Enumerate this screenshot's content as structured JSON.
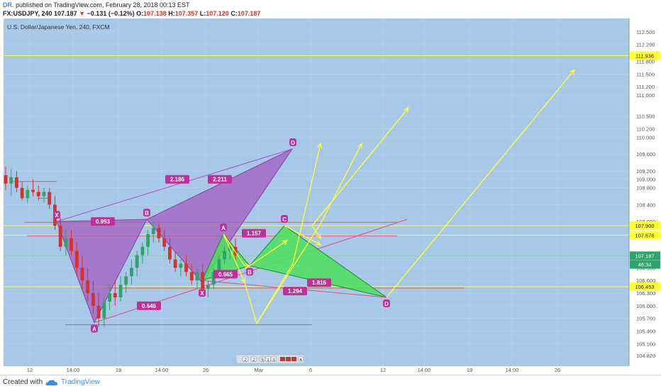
{
  "header": {
    "author": "DR.",
    "published": "published on TradingView.com, February 28, 2018 00:13 EST",
    "symbol": "FX:USDJPY, 240",
    "last": "107.187",
    "change": "−0.131 (−0.12%)",
    "open_label": "O:",
    "open": "107.138",
    "high_label": "H:",
    "high": "107.357",
    "low_label": "L:",
    "low": "107.120",
    "close_label": "C:",
    "close": "107.187"
  },
  "footer": {
    "created": "Created with",
    "brand": "TradingView"
  },
  "colors": {
    "background": "#a8c8e8",
    "bull": "#2ea36b",
    "bear": "#d8312b",
    "bat_fill": "#a35ec0",
    "green_fill": "#4ce05a",
    "projection": "#ffff33",
    "level": "#e8506e",
    "label_bg": "#c0309a"
  },
  "chart_data": {
    "type": "candlestick",
    "title": "U.S. Dollar/Japanese Yen, 240, FXCM",
    "ylim": [
      104.6,
      112.65
    ],
    "y_ticks": [
      "112.500",
      "112.200",
      "111.800",
      "111.500",
      "111.200",
      "111.000",
      "110.500",
      "110.200",
      "110.000",
      "109.600",
      "109.200",
      "109.000",
      "108.800",
      "108.400",
      "108.000",
      "107.900",
      "107.676",
      "107.187",
      "106.900",
      "106.600",
      "106.453",
      "106.300",
      "106.000",
      "105.700",
      "105.400",
      "105.100",
      "104.820"
    ],
    "x_ticks": [
      "12",
      "14:00",
      "19",
      "14:00",
      "26",
      "Mar",
      "6",
      "12",
      "14:00",
      "19",
      "14:00",
      "26"
    ],
    "price_badges": [
      {
        "label": "111.936",
        "value": 111.936,
        "style": "yellow"
      },
      {
        "label": "107.900",
        "value": 107.9,
        "style": "yellow"
      },
      {
        "label": "107.676",
        "value": 107.676,
        "style": "yellow"
      },
      {
        "label": "107.187",
        "value": 107.187,
        "style": "green"
      },
      {
        "label": "46:34",
        "value": 106.98,
        "style": "green"
      },
      {
        "label": "106.453",
        "value": 106.453,
        "style": "yellow"
      }
    ],
    "candles_ohlc": [
      [
        109.1,
        109.3,
        108.75,
        108.9
      ],
      [
        108.9,
        109.25,
        108.6,
        109.05
      ],
      [
        109.05,
        109.2,
        108.7,
        108.8
      ],
      [
        108.8,
        108.95,
        108.5,
        108.55
      ],
      [
        108.55,
        108.85,
        108.45,
        108.75
      ],
      [
        108.75,
        109.0,
        108.6,
        108.7
      ],
      [
        108.7,
        108.85,
        108.5,
        108.6
      ],
      [
        108.6,
        108.8,
        108.45,
        108.7
      ],
      [
        108.7,
        108.8,
        108.3,
        108.4
      ],
      [
        108.4,
        108.6,
        107.8,
        107.9
      ],
      [
        107.9,
        108.1,
        107.3,
        107.4
      ],
      [
        107.4,
        107.8,
        107.2,
        107.6
      ],
      [
        107.6,
        107.8,
        107.2,
        107.3
      ],
      [
        107.3,
        107.5,
        106.7,
        106.9
      ],
      [
        106.9,
        107.2,
        106.4,
        106.6
      ],
      [
        106.6,
        106.9,
        106.1,
        106.3
      ],
      [
        106.3,
        106.6,
        105.8,
        106.0
      ],
      [
        106.0,
        106.3,
        105.5,
        105.7
      ],
      [
        105.7,
        106.2,
        105.5,
        106.1
      ],
      [
        106.1,
        106.5,
        105.9,
        106.3
      ],
      [
        106.3,
        106.6,
        106.0,
        106.2
      ],
      [
        106.2,
        106.7,
        106.1,
        106.5
      ],
      [
        106.5,
        106.8,
        106.3,
        106.7
      ],
      [
        106.7,
        107.1,
        106.5,
        106.9
      ],
      [
        106.9,
        107.3,
        106.7,
        107.2
      ],
      [
        107.2,
        107.5,
        107.0,
        107.4
      ],
      [
        107.4,
        107.8,
        107.2,
        107.7
      ],
      [
        107.7,
        108.0,
        107.5,
        107.85
      ],
      [
        107.85,
        107.95,
        107.5,
        107.6
      ],
      [
        107.6,
        107.8,
        107.3,
        107.4
      ],
      [
        107.4,
        107.6,
        107.0,
        107.1
      ],
      [
        107.1,
        107.3,
        106.8,
        106.9
      ],
      [
        106.9,
        107.1,
        106.7,
        107.0
      ],
      [
        107.0,
        107.2,
        106.7,
        106.8
      ],
      [
        106.8,
        107.0,
        106.5,
        106.6
      ],
      [
        106.6,
        106.9,
        106.4,
        106.8
      ],
      [
        106.8,
        107.0,
        106.3,
        106.4
      ],
      [
        106.4,
        106.6,
        106.2,
        106.5
      ],
      [
        106.5,
        106.9,
        106.4,
        106.8
      ],
      [
        106.8,
        107.2,
        106.7,
        107.1
      ],
      [
        107.1,
        107.4,
        107.0,
        107.3
      ],
      [
        107.3,
        107.5,
        107.1,
        107.4
      ],
      [
        107.4,
        107.6,
        107.1,
        107.2
      ]
    ],
    "patterns": [
      {
        "name": "bat",
        "points": [
          "X",
          "A",
          "B",
          "C",
          "D"
        ],
        "ratios": [
          "0.993",
          "2.186",
          "2.211",
          "1.157",
          "0.646"
        ]
      },
      {
        "name": "green",
        "points": [
          "A",
          "B",
          "C",
          "D"
        ],
        "ratios": [
          "0.665",
          "1.816",
          "1.294"
        ]
      }
    ],
    "point_labels": [
      "X",
      "A",
      "B",
      "A",
      "D",
      "X",
      "B",
      "C",
      "D"
    ],
    "ratio_labels": [
      "0.993",
      "2.186",
      "2.211",
      "1.157",
      "0.646",
      "0.665",
      "1.816",
      "1.294"
    ],
    "events_strip": [
      "2",
      "2",
      "5",
      "1",
      "3",
      "4"
    ]
  }
}
